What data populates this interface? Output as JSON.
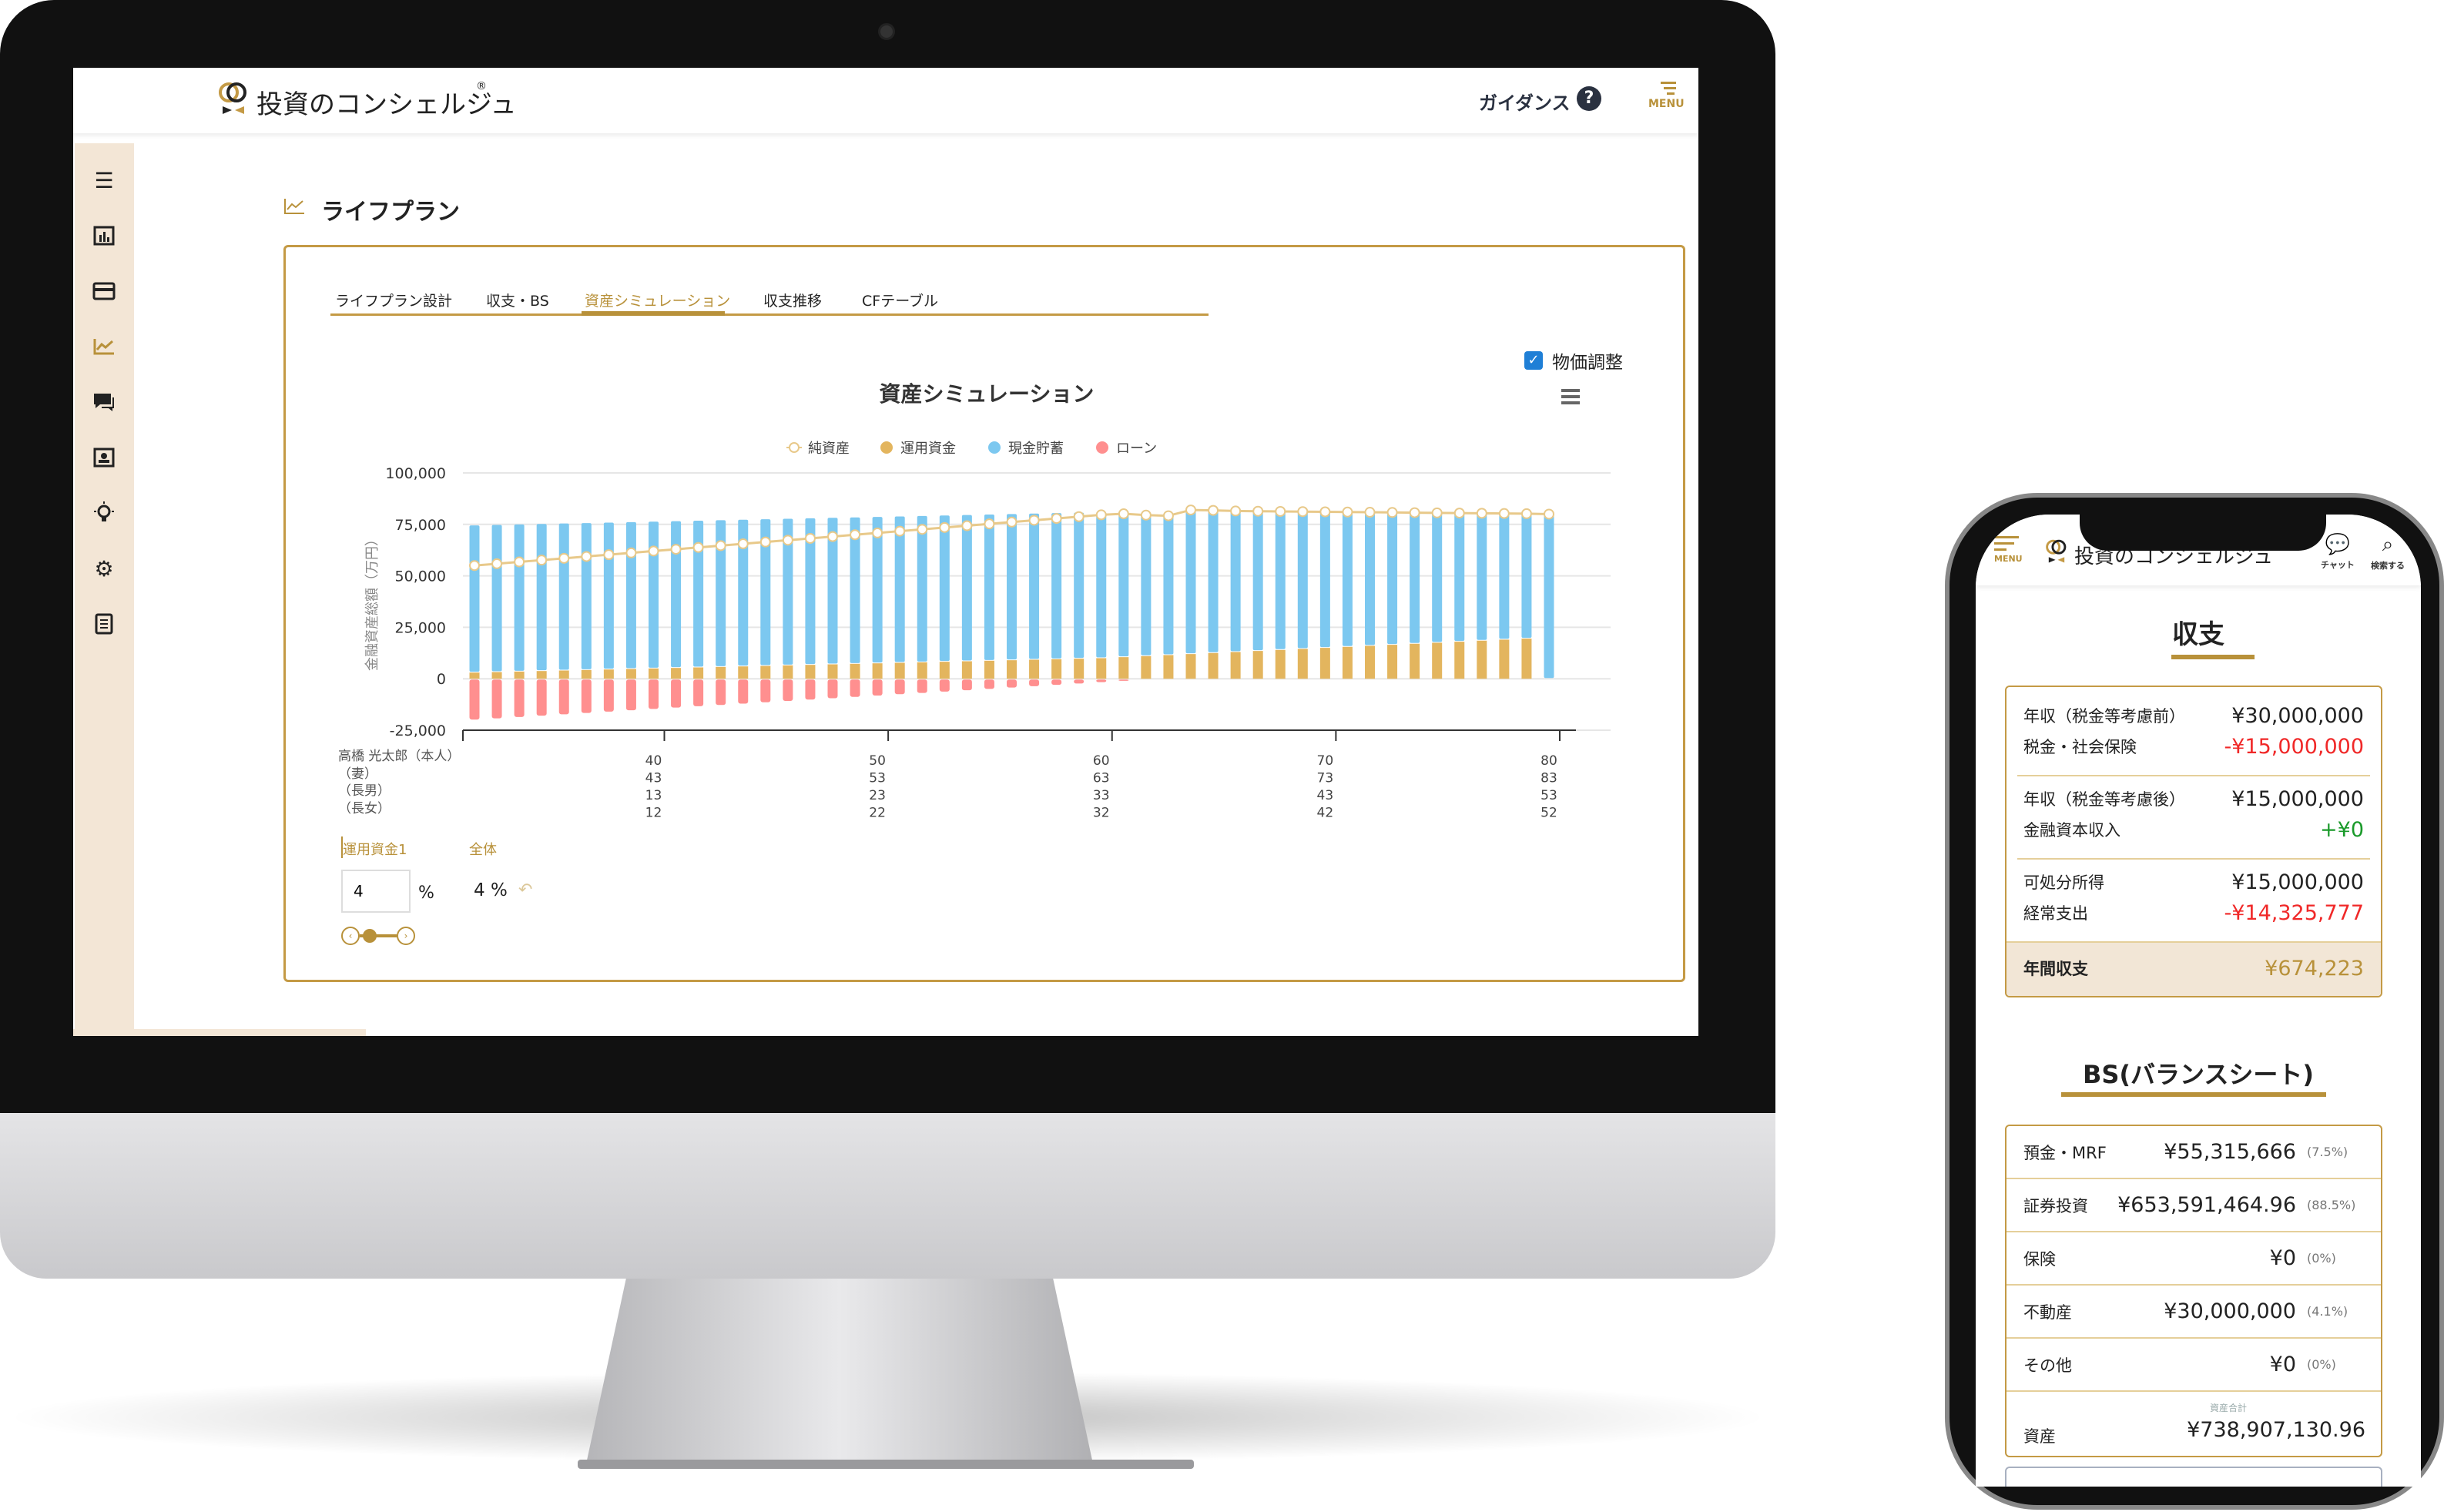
{
  "desktop": {
    "brand": "投資のコンシェルジュ",
    "brand_mark": "®",
    "header": {
      "guidance_label": "ガイダンス",
      "help_icon": "?",
      "menu_label": "MENU"
    },
    "sidebar": {
      "items": [
        "menu-icon",
        "dashboard-chart-icon",
        "card-icon",
        "line-chart-icon",
        "chat-icon",
        "profile-icon",
        "lightbulb-icon",
        "gear-icon",
        "document-icon"
      ],
      "active_index": 3
    },
    "page_title": "ライフプラン",
    "tabs": [
      {
        "label": "ライフプラン設計",
        "active": false
      },
      {
        "label": "収支・BS",
        "active": false
      },
      {
        "label": "資産シミュレーション",
        "active": true
      },
      {
        "label": "収支推移",
        "active": false
      },
      {
        "label": "CFテーブル",
        "active": false
      }
    ],
    "price_adjust": {
      "label": "物価調整",
      "checked": true
    },
    "age_rows": {
      "labels": [
        "高橋 光太郎（本人）",
        "（妻）",
        "（長男）",
        "（長女）"
      ],
      "ticks": [
        [
          "40",
          "50",
          "60",
          "70",
          "80"
        ],
        [
          "43",
          "53",
          "63",
          "73",
          "83"
        ],
        [
          "13",
          "23",
          "33",
          "43",
          "53"
        ],
        [
          "12",
          "22",
          "32",
          "42",
          "52"
        ]
      ]
    },
    "fund_tabs": [
      "運用資金1",
      "全体"
    ],
    "rate_input": {
      "value": "4",
      "unit": "%"
    },
    "rate_display": "4 %",
    "slider_level_percent": 4
  },
  "chart_data": {
    "type": "bar",
    "title": "資産シミュレーション",
    "ylabel": "金融資産総額（万円）",
    "ylim": [
      -25000,
      100000
    ],
    "yticks": [
      "100,000",
      "75,000",
      "50,000",
      "25,000",
      "0",
      "-25,000"
    ],
    "ytick_values": [
      100000,
      75000,
      50000,
      25000,
      0,
      -25000
    ],
    "grid": true,
    "legend_placement": "top",
    "x": [
      32,
      33,
      34,
      35,
      36,
      37,
      38,
      39,
      40,
      41,
      42,
      43,
      44,
      45,
      46,
      47,
      48,
      49,
      50,
      51,
      52,
      53,
      54,
      55,
      56,
      57,
      58,
      59,
      60,
      61,
      62,
      63,
      64,
      65,
      66,
      67,
      68,
      69,
      70,
      71,
      72,
      73,
      74,
      75,
      76,
      77,
      78,
      79,
      80
    ],
    "xticks": [
      40,
      50,
      60,
      70,
      80
    ],
    "series": [
      {
        "name": "純資産",
        "kind": "line",
        "color": "#e8c98a",
        "values": [
          55000,
          55880,
          56760,
          57640,
          58520,
          59400,
          60280,
          61160,
          62040,
          62920,
          63800,
          64680,
          65560,
          66440,
          67320,
          68200,
          69080,
          69960,
          70840,
          71720,
          72600,
          73480,
          74360,
          75240,
          76120,
          77000,
          77880,
          78760,
          79640,
          80150,
          79500,
          79200,
          82000,
          81800,
          81500,
          81400,
          81300,
          81200,
          81100,
          81000,
          80900,
          80800,
          80700,
          80600,
          80500,
          80400,
          80300,
          80200,
          80000
        ]
      },
      {
        "name": "運用資金",
        "kind": "stacked-bar",
        "color": "#e3b55e",
        "values": [
          3000,
          3250,
          3500,
          3750,
          4000,
          4250,
          4500,
          4750,
          5000,
          5250,
          5500,
          5750,
          6000,
          6250,
          6500,
          6750,
          7000,
          7250,
          7500,
          7750,
          8000,
          8250,
          8500,
          8750,
          9000,
          9250,
          9500,
          9750,
          10000,
          10500,
          11000,
          11500,
          12000,
          12500,
          13000,
          13500,
          14000,
          14500,
          15000,
          15500,
          16000,
          16500,
          17000,
          17500,
          18000,
          18500,
          19000,
          19500,
          0
        ]
      },
      {
        "name": "現金貯蓄",
        "kind": "stacked-bar",
        "color": "#7cc8f0",
        "values": [
          71500,
          71480,
          71460,
          71440,
          71420,
          71400,
          71380,
          71360,
          71340,
          71320,
          71300,
          71280,
          71260,
          71240,
          71220,
          71200,
          71180,
          71160,
          71140,
          71120,
          71100,
          71080,
          71060,
          71040,
          71020,
          71000,
          70980,
          70960,
          70940,
          70300,
          68500,
          67700,
          70000,
          69300,
          68500,
          67900,
          67300,
          66700,
          66100,
          65500,
          64900,
          64300,
          63700,
          63100,
          62500,
          61900,
          61300,
          60700,
          80000
        ]
      },
      {
        "name": "ローン",
        "kind": "stacked-bar",
        "color": "#ff8f8f",
        "values": [
          -19500,
          -18850,
          -18200,
          -17550,
          -16900,
          -16250,
          -15600,
          -14950,
          -14300,
          -13650,
          -13000,
          -12350,
          -11700,
          -11050,
          -10400,
          -9750,
          -9100,
          -8450,
          -7800,
          -7150,
          -6500,
          -5850,
          -5200,
          -4550,
          -3900,
          -3250,
          -2600,
          -1950,
          -1300,
          -650,
          0,
          0,
          0,
          0,
          0,
          0,
          0,
          0,
          0,
          0,
          0,
          0,
          0,
          0,
          0,
          0,
          0,
          0,
          0
        ]
      }
    ]
  },
  "mobile": {
    "menu_label": "MENU",
    "brand": "投資のコンシェルジュ",
    "chat_label": "チャット",
    "search_label": "検索する",
    "income_title": "収支",
    "income_rows": [
      {
        "label": "年収（税金等考慮前）",
        "value": "¥30,000,000",
        "tone": "normal"
      },
      {
        "label": "税金・社会保険",
        "value": "-¥15,000,000",
        "tone": "red"
      },
      {
        "label": "年収（税金等考慮後）",
        "value": "¥15,000,000",
        "tone": "normal"
      },
      {
        "label": "金融資本収入",
        "value": "+¥0",
        "tone": "green"
      },
      {
        "label": "可処分所得",
        "value": "¥15,000,000",
        "tone": "normal"
      },
      {
        "label": "経常支出",
        "value": "-¥14,325,777",
        "tone": "red"
      }
    ],
    "annual_balance": {
      "label": "年間収支",
      "value": "¥674,223"
    },
    "bs_title": "BS(バランスシート)",
    "bs_rows": [
      {
        "label": "預金・MRF",
        "value": "¥55,315,666",
        "pct": "(7.5%)"
      },
      {
        "label": "証券投資",
        "value": "¥653,591,464.96",
        "pct": "(88.5%)"
      },
      {
        "label": "保険",
        "value": "¥0",
        "pct": "(0%)"
      },
      {
        "label": "不動産",
        "value": "¥30,000,000",
        "pct": "(4.1%)"
      },
      {
        "label": "その他",
        "value": "¥0",
        "pct": "(0%)"
      }
    ],
    "total": {
      "caption": "資産合計",
      "label": "資産",
      "value": "¥738,907,130.96"
    }
  },
  "colors": {
    "gold": "#b8913a",
    "sidebar_bg": "#f3e6d6",
    "red": "#f02828",
    "green": "#1a9a2a"
  }
}
